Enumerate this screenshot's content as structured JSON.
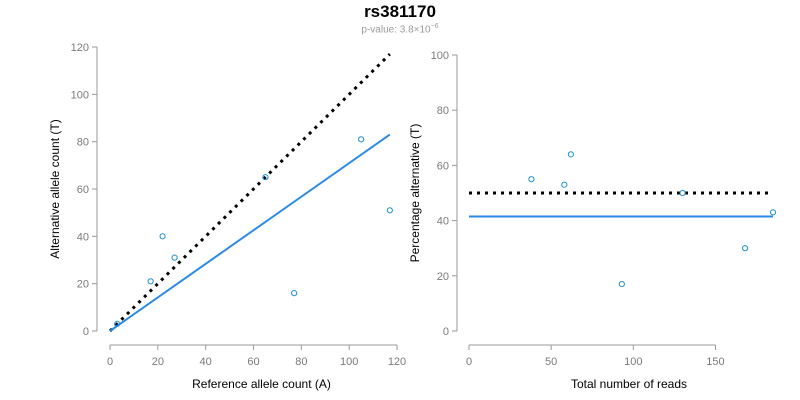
{
  "title": "rs381170",
  "subtitle": {
    "prefix": "p-value: 3.8×10",
    "exponent": "−6"
  },
  "colors": {
    "points": "#1f8fd0",
    "fit_line": "#2b8ae6",
    "reference_line": "#000000",
    "axis": "#9a9a9a",
    "tick_text": "#7a7a7a"
  },
  "chart_data": [
    {
      "type": "scatter",
      "xlabel": "Reference allele count (A)",
      "ylabel": "Alternative allele count (T)",
      "xlim": [
        0,
        120
      ],
      "ylim": [
        0,
        120
      ],
      "xticks": [
        0,
        20,
        40,
        60,
        80,
        100,
        120
      ],
      "yticks": [
        0,
        20,
        40,
        60,
        80,
        100,
        120
      ],
      "points": [
        {
          "x": 3,
          "y": 3
        },
        {
          "x": 17,
          "y": 21
        },
        {
          "x": 22,
          "y": 40
        },
        {
          "x": 27,
          "y": 31
        },
        {
          "x": 65,
          "y": 65
        },
        {
          "x": 77,
          "y": 16
        },
        {
          "x": 105,
          "y": 81
        },
        {
          "x": 117,
          "y": 51
        }
      ],
      "reference_line": {
        "style": "dotted",
        "x": [
          0,
          117
        ],
        "y": [
          0,
          117
        ]
      },
      "fit_line": {
        "style": "solid",
        "x": [
          0,
          117
        ],
        "y": [
          0,
          83
        ]
      }
    },
    {
      "type": "scatter",
      "xlabel": "Total number of reads",
      "ylabel": "Percentage alternative (T)",
      "xlim": [
        0,
        185
      ],
      "ylim": [
        0,
        100
      ],
      "xticks": [
        0,
        50,
        100,
        150
      ],
      "yticks": [
        0,
        20,
        40,
        60,
        80,
        100
      ],
      "points": [
        {
          "x": 38,
          "y": 55
        },
        {
          "x": 58,
          "y": 53
        },
        {
          "x": 62,
          "y": 64
        },
        {
          "x": 93,
          "y": 17
        },
        {
          "x": 130,
          "y": 50
        },
        {
          "x": 168,
          "y": 30
        },
        {
          "x": 185,
          "y": 43
        }
      ],
      "reference_line": {
        "style": "dotted",
        "x": [
          0,
          183
        ],
        "y": [
          50,
          50
        ]
      },
      "fit_line": {
        "style": "solid",
        "x": [
          0,
          185
        ],
        "y": [
          41.5,
          41.5
        ]
      }
    }
  ]
}
